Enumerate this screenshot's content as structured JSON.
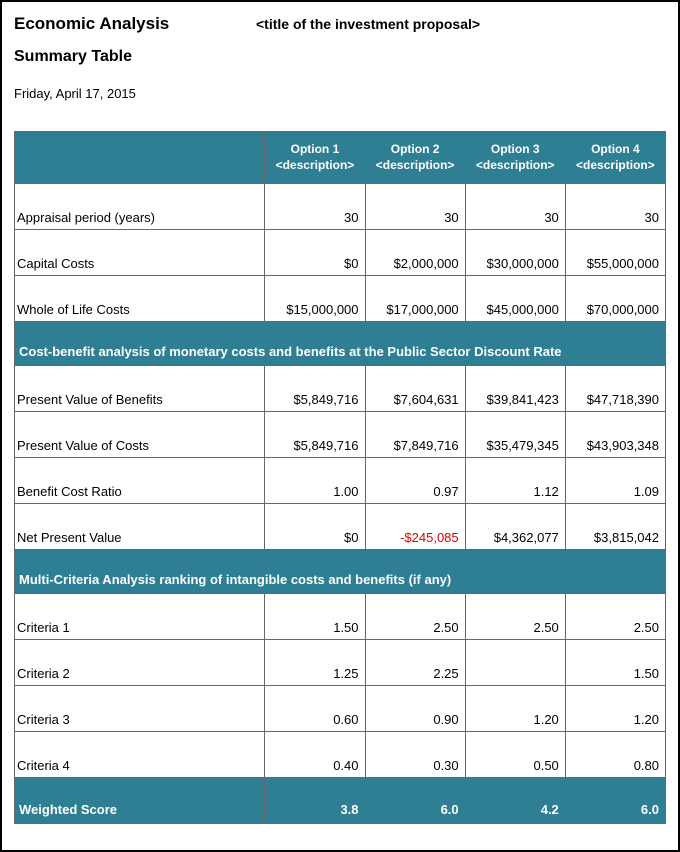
{
  "header": {
    "title": "Economic Analysis",
    "proposal_placeholder": "<title of the investment proposal>",
    "subtitle": "Summary Table",
    "date": "Friday, April 17, 2015"
  },
  "colors": {
    "header_bg": "#2e7e94",
    "header_text": "#ffffff",
    "border": "#666666",
    "negative": "#d00000"
  },
  "options": [
    {
      "label": "Option 1",
      "desc": "<description>"
    },
    {
      "label": "Option 2",
      "desc": "<description>"
    },
    {
      "label": "Option 3",
      "desc": "<description>"
    },
    {
      "label": "Option 4",
      "desc": "<description>"
    }
  ],
  "rows": {
    "appraisal_period": {
      "label": "Appraisal period (years)",
      "vals": [
        "30",
        "30",
        "30",
        "30"
      ]
    },
    "capital_costs": {
      "label": "Capital Costs",
      "vals": [
        "$0",
        "$2,000,000",
        "$30,000,000",
        "$55,000,000"
      ]
    },
    "whole_life": {
      "label": "Whole of Life Costs",
      "vals": [
        "$15,000,000",
        "$17,000,000",
        "$45,000,000",
        "$70,000,000"
      ]
    }
  },
  "section_cba": "Cost-benefit analysis of monetary costs and benefits at the Public Sector Discount Rate",
  "cba": {
    "pv_benefits": {
      "label": "Present Value of Benefits",
      "vals": [
        "$5,849,716",
        "$7,604,631",
        "$39,841,423",
        "$47,718,390"
      ]
    },
    "pv_costs": {
      "label": "Present Value of Costs",
      "vals": [
        "$5,849,716",
        "$7,849,716",
        "$35,479,345",
        "$43,903,348"
      ]
    },
    "bcr": {
      "label": "Benefit Cost Ratio",
      "vals": [
        "1.00",
        "0.97",
        "1.12",
        "1.09"
      ]
    },
    "npv": {
      "label": "Net Present Value",
      "vals": [
        "$0",
        "-$245,085",
        "$4,362,077",
        "$3,815,042"
      ],
      "neg": [
        false,
        true,
        false,
        false
      ]
    }
  },
  "section_mca": "Multi-Criteria Analysis ranking of intangible costs and benefits (if any)",
  "mca": {
    "c1": {
      "label": "Criteria 1",
      "vals": [
        "1.50",
        "2.50",
        "2.50",
        "2.50"
      ]
    },
    "c2": {
      "label": "Criteria 2",
      "vals": [
        "1.25",
        "2.25",
        "",
        "1.50"
      ]
    },
    "c3": {
      "label": "Criteria 3",
      "vals": [
        "0.60",
        "0.90",
        "1.20",
        "1.20"
      ]
    },
    "c4": {
      "label": "Criteria 4",
      "vals": [
        "0.40",
        "0.30",
        "0.50",
        "0.80"
      ]
    }
  },
  "weighted": {
    "label": "Weighted Score",
    "vals": [
      "3.8",
      "6.0",
      "4.2",
      "6.0"
    ]
  }
}
